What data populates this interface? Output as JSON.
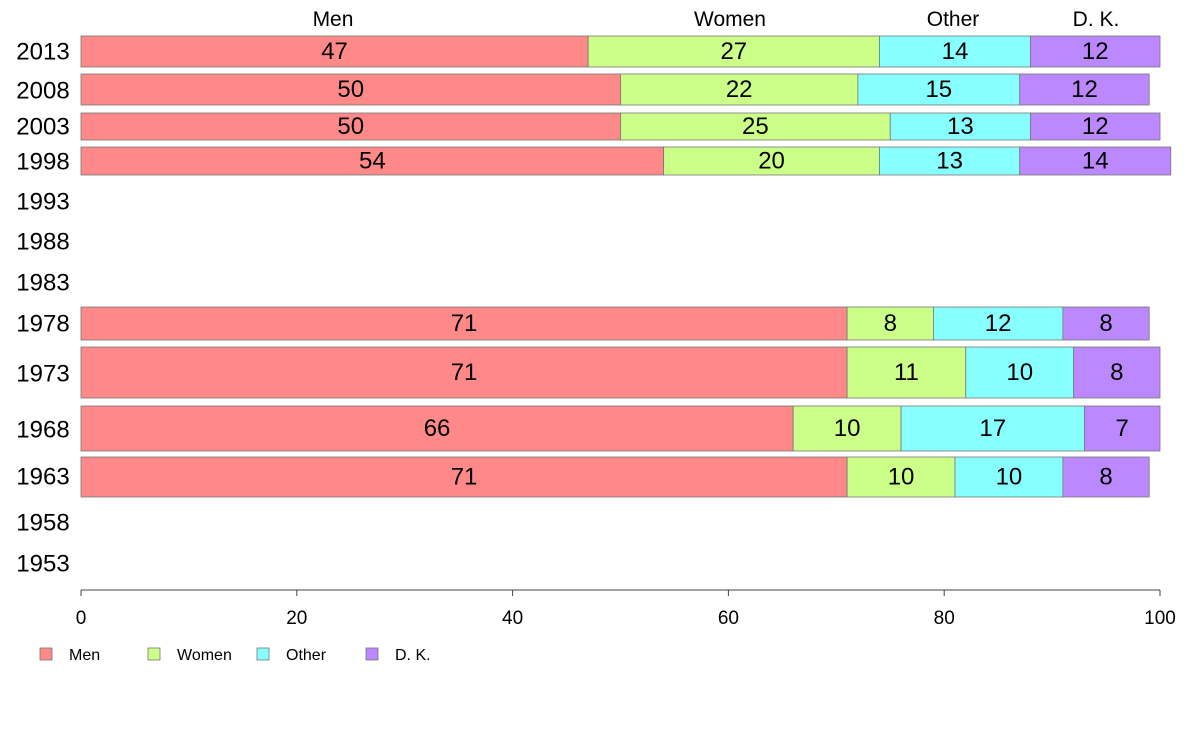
{
  "chart_data": {
    "type": "bar",
    "orientation": "horizontal",
    "stacked": true,
    "series_names": [
      "Men",
      "Women",
      "Other",
      "D. K."
    ],
    "colors": [
      "#ff8888",
      "#ccff88",
      "#88ffff",
      "#bb88ff"
    ],
    "categories": [
      "2013",
      "2008",
      "2003",
      "1998",
      "1993",
      "1988",
      "1983",
      "1978",
      "1973",
      "1968",
      "1963",
      "1958",
      "1953"
    ],
    "rows": [
      {
        "year": "2013",
        "values": [
          47,
          27,
          14,
          12
        ]
      },
      {
        "year": "2008",
        "values": [
          50,
          22,
          15,
          12
        ]
      },
      {
        "year": "2003",
        "values": [
          50,
          25,
          13,
          12
        ]
      },
      {
        "year": "1998",
        "values": [
          54,
          20,
          13,
          14
        ]
      },
      {
        "year": "1993",
        "values": null
      },
      {
        "year": "1988",
        "values": null
      },
      {
        "year": "1983",
        "values": null
      },
      {
        "year": "1978",
        "values": [
          71,
          8,
          12,
          8
        ]
      },
      {
        "year": "1973",
        "values": [
          71,
          11,
          10,
          8
        ]
      },
      {
        "year": "1968",
        "values": [
          66,
          10,
          17,
          7
        ]
      },
      {
        "year": "1963",
        "values": [
          71,
          10,
          10,
          8
        ]
      },
      {
        "year": "1958",
        "values": null
      },
      {
        "year": "1953",
        "values": null
      }
    ],
    "xlim": [
      0,
      100
    ],
    "xticks": [
      "0",
      "20",
      "40",
      "60",
      "80",
      "100"
    ],
    "column_headers": [
      "Men",
      "Women",
      "Other",
      "D. K."
    ],
    "legend": [
      "Men",
      "Women",
      "Other",
      "D. K."
    ],
    "legend_position": "bottom-left",
    "grid": false
  }
}
